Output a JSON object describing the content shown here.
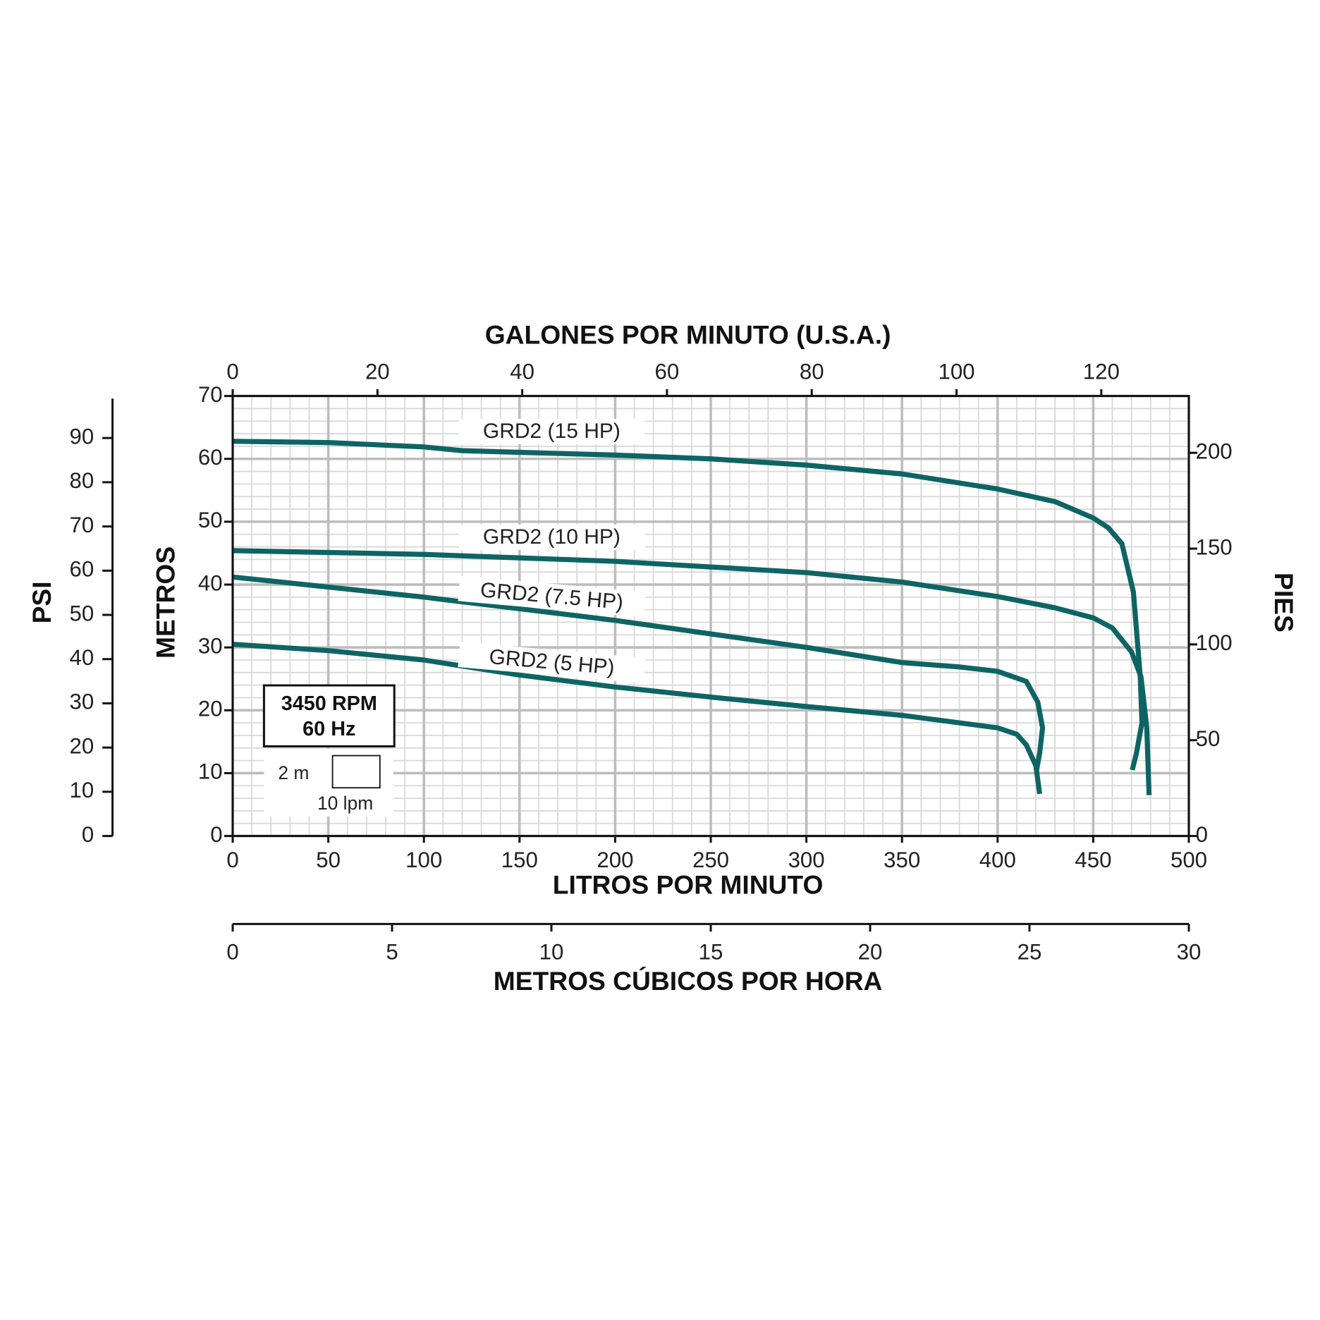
{
  "chart_data": {
    "type": "line",
    "x_label": "LITROS POR MINUTO",
    "y_label": "METROS",
    "xlim": [
      0,
      500
    ],
    "xticks": [
      0,
      50,
      100,
      150,
      200,
      250,
      300,
      350,
      400,
      450,
      500
    ],
    "ylim": [
      0,
      70
    ],
    "yticks": [
      0,
      10,
      20,
      30,
      40,
      50,
      60,
      70
    ],
    "grid": true,
    "minor_grid": [
      10,
      2
    ],
    "top_axis": {
      "label": "GALONES POR MINUTO (U.S.A.)",
      "lim": [
        0,
        132.1
      ],
      "ticks": [
        0,
        20,
        40,
        60,
        80,
        100,
        120
      ]
    },
    "right_axis": {
      "label": "PIES",
      "lim": [
        0,
        229.66
      ],
      "ticks": [
        0,
        50,
        100,
        150,
        200
      ]
    },
    "psi_axis": {
      "label": "PSI",
      "lim": [
        0,
        99.5
      ],
      "ticks": [
        0,
        10,
        20,
        30,
        40,
        50,
        60,
        70,
        80,
        90
      ]
    },
    "bottom2_axis": {
      "label": "METROS CÚBICOS POR HORA",
      "lim": [
        0,
        30
      ],
      "ticks": [
        0,
        5,
        10,
        15,
        20,
        25,
        30
      ]
    },
    "info_box": [
      "3450 RPM",
      "60 Hz"
    ],
    "scale_legend": {
      "height_label": "2 m",
      "width_label": "10 lpm"
    },
    "series": [
      {
        "name": "GRD2 (15 HP)",
        "color": "#0e6464",
        "x": [
          0,
          50,
          100,
          120,
          200,
          250,
          300,
          350,
          400,
          430,
          450,
          458,
          465,
          471,
          474.6,
          475.5,
          472.5,
          470.4
        ],
        "values": [
          62.8,
          62.6,
          61.9,
          61.3,
          60.6,
          60,
          59,
          57.6,
          55.2,
          53.2,
          50.6,
          49,
          46.5,
          38.8,
          25.3,
          18,
          13,
          10.5
        ]
      },
      {
        "name": "GRD2 (10 HP)",
        "color": "#0e6464",
        "x": [
          0,
          100,
          200,
          300,
          350,
          400,
          430,
          450,
          460,
          470,
          475,
          478,
          479.2
        ],
        "values": [
          45.4,
          44.8,
          43.7,
          41.9,
          40.4,
          38.1,
          36.3,
          34.7,
          33.1,
          29.3,
          25.3,
          17.2,
          6.5
        ]
      },
      {
        "name": "GRD2 (7.5 HP)",
        "color": "#0e6464",
        "x": [
          0,
          100,
          200,
          300,
          350,
          380,
          400,
          415,
          421,
          423.5,
          422,
          420.4
        ],
        "values": [
          41.2,
          38,
          34.3,
          30,
          27.6,
          26.9,
          26.2,
          24.6,
          21.3,
          17.2,
          13.2,
          10.5
        ]
      },
      {
        "name": "GRD2 (5 HP)",
        "color": "#0e6464",
        "x": [
          0,
          50,
          100,
          150,
          200,
          250,
          300,
          350,
          400,
          410,
          415,
          420,
          422
        ],
        "values": [
          30.5,
          29.5,
          28,
          25.6,
          23.7,
          22.1,
          20.6,
          19.2,
          17.2,
          16.2,
          14.5,
          11.2,
          6.7
        ]
      }
    ]
  }
}
